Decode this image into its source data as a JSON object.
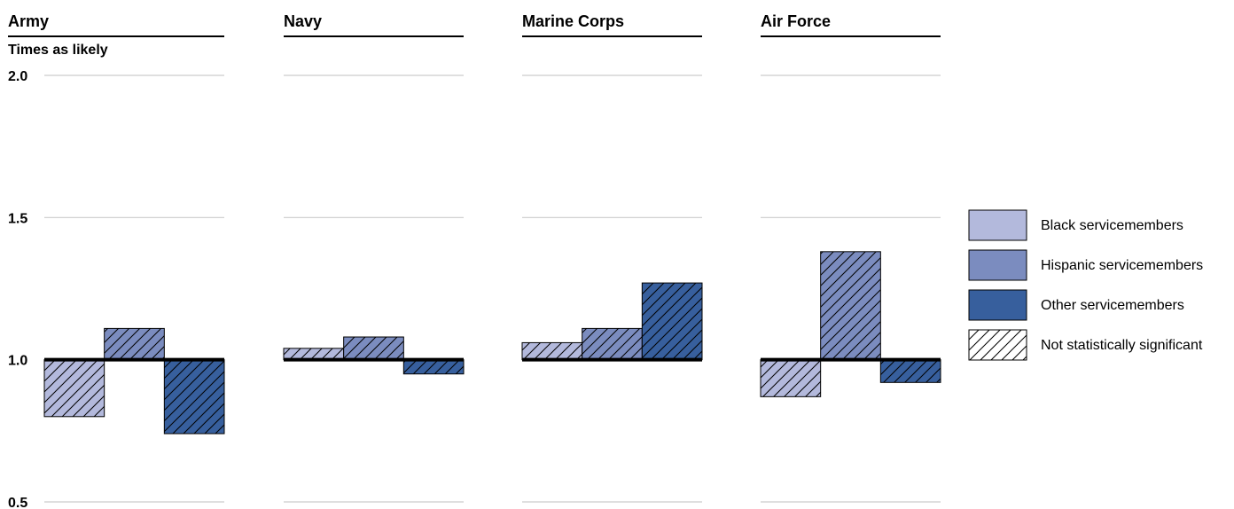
{
  "chart_data": {
    "type": "bar",
    "ylabel": "Times as likely",
    "ylim": [
      0.5,
      2.0
    ],
    "yticks": [
      "2.0",
      "1.5",
      "1.0",
      "0.5"
    ],
    "ytick_values": [
      2.0,
      1.5,
      1.0,
      0.5
    ],
    "baseline": 1.0,
    "grid": true,
    "legend_position": "right",
    "series": [
      {
        "name": "Black servicemembers",
        "color": "#b3b9dc"
      },
      {
        "name": "Hispanic servicemembers",
        "color": "#7b8cbf"
      },
      {
        "name": "Other servicemembers",
        "color": "#375f9d"
      }
    ],
    "hatch_legend": "Not statistically significant",
    "panels": [
      {
        "title": "Army",
        "values": [
          0.8,
          1.11,
          0.74
        ],
        "not_significant": [
          true,
          true,
          true
        ]
      },
      {
        "title": "Navy",
        "values": [
          1.04,
          1.08,
          0.95
        ],
        "not_significant": [
          true,
          true,
          true
        ]
      },
      {
        "title": "Marine Corps",
        "values": [
          1.06,
          1.11,
          1.27
        ],
        "not_significant": [
          true,
          true,
          true
        ]
      },
      {
        "title": "Air Force",
        "values": [
          0.87,
          1.38,
          0.92
        ],
        "not_significant": [
          true,
          true,
          true
        ]
      }
    ]
  }
}
